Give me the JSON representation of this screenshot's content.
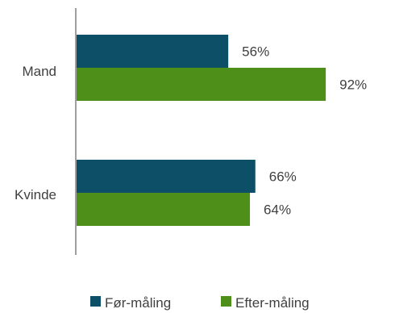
{
  "chart_data": {
    "type": "bar",
    "orientation": "horizontal",
    "categories": [
      "Mand",
      "Kvinde"
    ],
    "series": [
      {
        "name": "Før-måling",
        "color": "#0d4f66",
        "values": [
          56,
          66
        ],
        "labels": [
          "56%",
          "66%"
        ]
      },
      {
        "name": "Efter-måling",
        "color": "#4e8f1a",
        "values": [
          92,
          64
        ],
        "labels": [
          "92%",
          "64%"
        ]
      }
    ],
    "xlim": [
      0,
      100
    ],
    "grid": false,
    "legend_position": "bottom",
    "title": "",
    "xlabel": "",
    "ylabel": ""
  }
}
